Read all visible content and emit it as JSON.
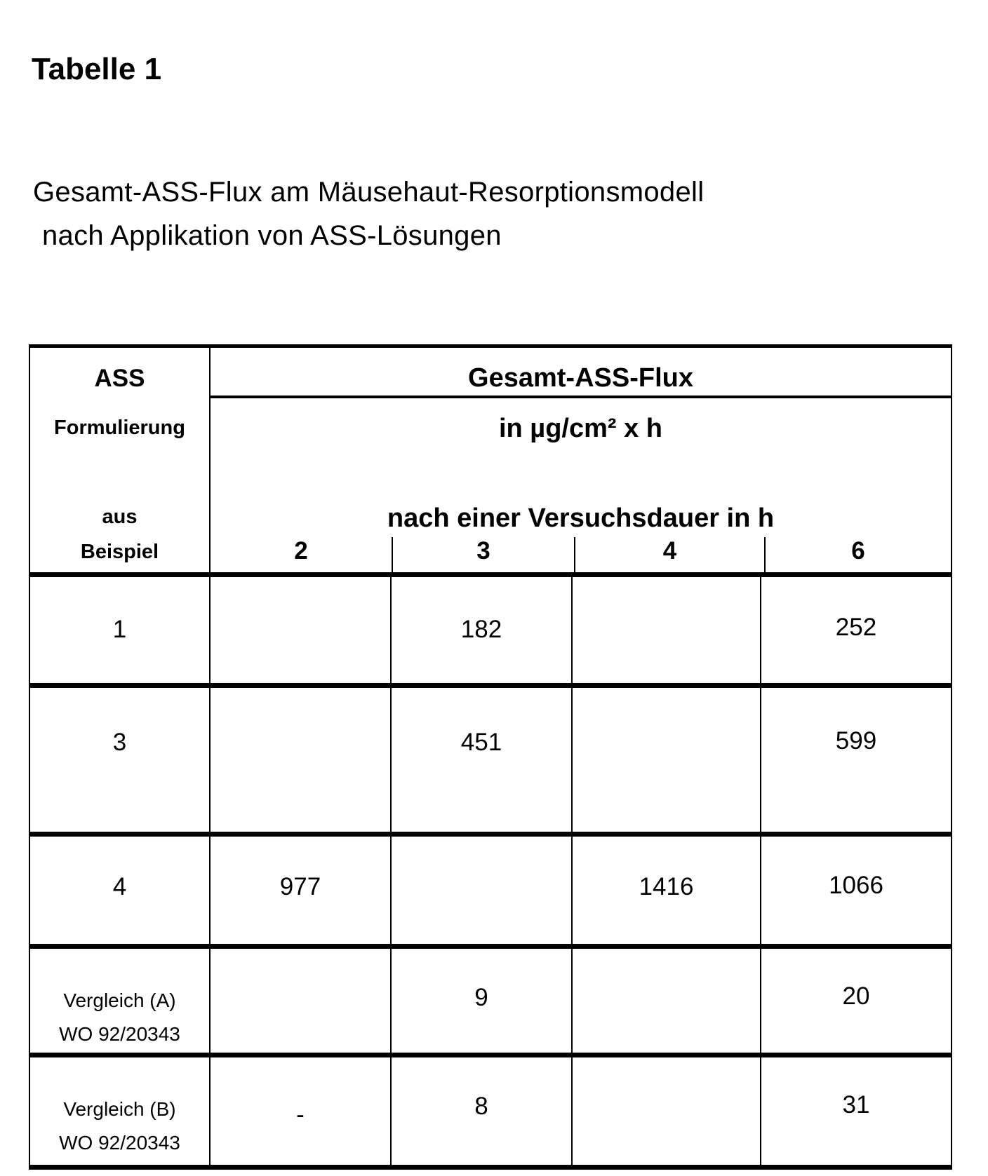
{
  "title": "Tabelle 1",
  "subtitle_line1": "Gesamt-ASS-Flux  am Mäusehaut-Resorptionsmodell",
  "subtitle_line2": "nach Applikation von ASS-Lösungen",
  "table": {
    "row_header": {
      "line1": "ASS",
      "line2": "Formulierung",
      "line3": "aus",
      "line4": "Beispiel"
    },
    "group_header": "Gesamt-ASS-Flux",
    "unit": "in µg/cm² x h",
    "duration_label": "nach einer Versuchsdauer in h",
    "columns": [
      "2",
      "3",
      "4",
      "6"
    ],
    "rows": [
      {
        "label": "1",
        "label2": "",
        "values": [
          "",
          "182",
          "",
          "252"
        ]
      },
      {
        "label": "3",
        "label2": "",
        "values": [
          "",
          "451",
          "",
          "599"
        ]
      },
      {
        "label": "4",
        "label2": "",
        "values": [
          "977",
          "",
          "1416",
          "1066"
        ]
      },
      {
        "label": "Vergleich (A)",
        "label2": "WO 92/20343",
        "values": [
          "",
          "9",
          "",
          "20"
        ]
      },
      {
        "label": "Vergleich (B)",
        "label2": "WO 92/20343",
        "values": [
          "-",
          "8",
          "",
          "31"
        ]
      }
    ]
  }
}
